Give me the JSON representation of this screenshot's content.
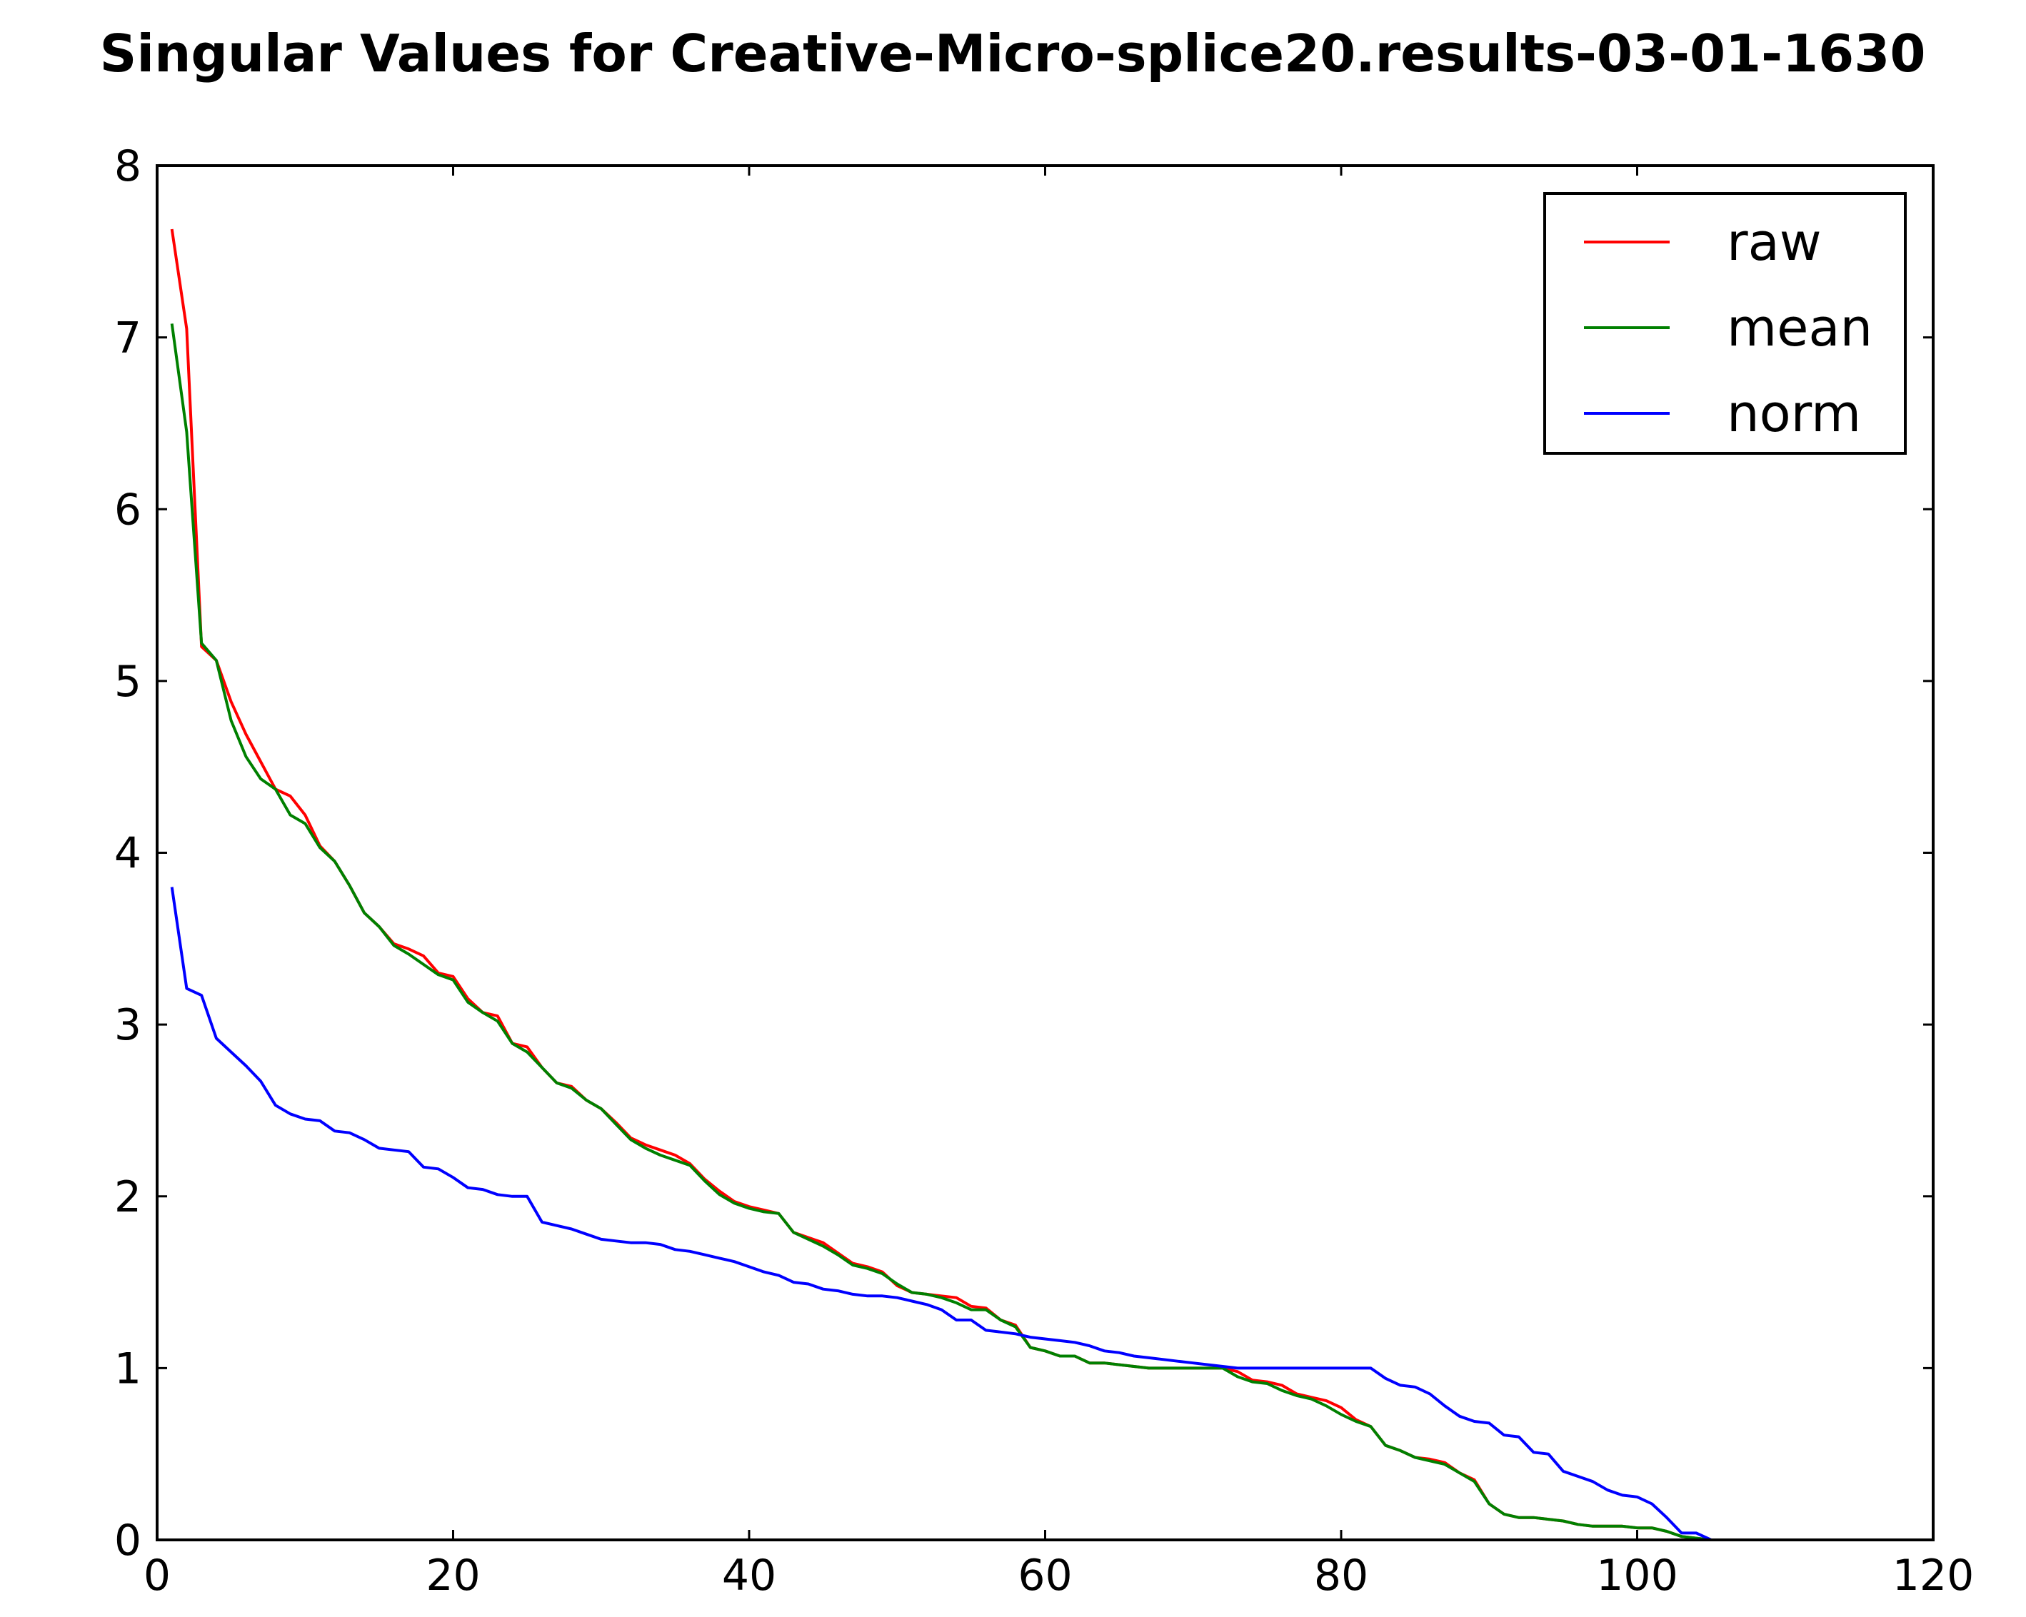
{
  "chart_data": {
    "type": "line",
    "title": "Singular Values for Creative-Micro-splice20.results-03-01-1630",
    "xlabel": "",
    "ylabel": "",
    "xlim": [
      0,
      120
    ],
    "ylim": [
      0,
      8
    ],
    "xticks": [
      "0",
      "20",
      "40",
      "60",
      "80",
      "100",
      "120"
    ],
    "yticks": [
      "0",
      "1",
      "2",
      "3",
      "4",
      "5",
      "6",
      "7",
      "8"
    ],
    "grid": false,
    "legend_position": "top-right",
    "series": [
      {
        "name": "raw",
        "color": "#ff0000",
        "x": [
          1,
          2,
          3,
          4,
          5,
          6,
          7,
          8,
          9,
          10,
          11,
          12,
          13,
          14,
          15,
          16,
          17,
          18,
          19,
          20,
          21,
          22,
          23,
          24,
          25,
          26,
          27,
          28,
          29,
          30,
          31,
          32,
          33,
          34,
          35,
          36,
          37,
          38,
          39,
          40,
          41,
          42,
          43,
          44,
          45,
          46,
          47,
          48,
          49,
          50,
          51,
          52,
          53,
          54,
          55,
          56,
          57,
          58,
          59,
          60,
          61,
          62,
          63,
          64,
          65,
          66,
          67,
          68,
          69,
          70,
          71,
          72,
          73,
          74,
          75,
          76,
          77,
          78,
          79,
          80,
          81,
          82,
          83,
          84,
          85,
          86,
          87,
          88,
          89,
          90,
          91,
          92,
          93,
          94,
          95,
          96,
          97,
          98,
          99,
          100,
          101,
          102,
          103,
          104,
          105
        ],
        "y": [
          7.63,
          7.05,
          5.2,
          5.12,
          4.88,
          4.69,
          4.53,
          4.37,
          4.33,
          4.22,
          4.04,
          3.95,
          3.81,
          3.65,
          3.57,
          3.47,
          3.44,
          3.4,
          3.3,
          3.28,
          3.15,
          3.07,
          3.05,
          2.89,
          2.87,
          2.75,
          2.66,
          2.64,
          2.56,
          2.51,
          2.43,
          2.34,
          2.3,
          2.27,
          2.24,
          2.19,
          2.1,
          2.03,
          1.97,
          1.94,
          1.92,
          1.9,
          1.79,
          1.76,
          1.73,
          1.67,
          1.61,
          1.59,
          1.56,
          1.48,
          1.44,
          1.43,
          1.42,
          1.41,
          1.36,
          1.35,
          1.28,
          1.25,
          1.12,
          1.1,
          1.07,
          1.07,
          1.03,
          1.03,
          1.02,
          1.01,
          1.0,
          1.0,
          1.0,
          1.0,
          1.0,
          1.0,
          0.98,
          0.93,
          0.92,
          0.9,
          0.85,
          0.83,
          0.81,
          0.77,
          0.7,
          0.66,
          0.55,
          0.52,
          0.48,
          0.47,
          0.45,
          0.39,
          0.35,
          0.21,
          0.15,
          0.13,
          0.13,
          0.12,
          0.11,
          0.09,
          0.08,
          0.08,
          0.08,
          0.07,
          0.07,
          0.05,
          0.02,
          0.01,
          0.0
        ]
      },
      {
        "name": "mean",
        "color": "#008000",
        "x": [
          1,
          2,
          3,
          4,
          5,
          6,
          7,
          8,
          9,
          10,
          11,
          12,
          13,
          14,
          15,
          16,
          17,
          18,
          19,
          20,
          21,
          22,
          23,
          24,
          25,
          26,
          27,
          28,
          29,
          30,
          31,
          32,
          33,
          34,
          35,
          36,
          37,
          38,
          39,
          40,
          41,
          42,
          43,
          44,
          45,
          46,
          47,
          48,
          49,
          50,
          51,
          52,
          53,
          54,
          55,
          56,
          57,
          58,
          59,
          60,
          61,
          62,
          63,
          64,
          65,
          66,
          67,
          68,
          69,
          70,
          71,
          72,
          73,
          74,
          75,
          76,
          77,
          78,
          79,
          80,
          81,
          82,
          83,
          84,
          85,
          86,
          87,
          88,
          89,
          90,
          91,
          92,
          93,
          94,
          95,
          96,
          97,
          98,
          99,
          100,
          101,
          102,
          103,
          104,
          105
        ],
        "y": [
          7.08,
          6.45,
          5.22,
          5.12,
          4.77,
          4.56,
          4.43,
          4.37,
          4.22,
          4.17,
          4.03,
          3.95,
          3.81,
          3.65,
          3.57,
          3.46,
          3.41,
          3.35,
          3.29,
          3.26,
          3.13,
          3.07,
          3.02,
          2.89,
          2.84,
          2.75,
          2.66,
          2.63,
          2.56,
          2.51,
          2.42,
          2.33,
          2.28,
          2.24,
          2.21,
          2.18,
          2.09,
          2.01,
          1.96,
          1.93,
          1.91,
          1.9,
          1.79,
          1.75,
          1.71,
          1.66,
          1.6,
          1.58,
          1.55,
          1.49,
          1.44,
          1.43,
          1.41,
          1.38,
          1.34,
          1.34,
          1.28,
          1.24,
          1.12,
          1.1,
          1.07,
          1.07,
          1.03,
          1.03,
          1.02,
          1.01,
          1.0,
          1.0,
          1.0,
          1.0,
          1.0,
          1.0,
          0.95,
          0.92,
          0.91,
          0.87,
          0.84,
          0.82,
          0.78,
          0.73,
          0.69,
          0.66,
          0.55,
          0.52,
          0.48,
          0.46,
          0.44,
          0.39,
          0.34,
          0.21,
          0.15,
          0.13,
          0.13,
          0.12,
          0.11,
          0.09,
          0.08,
          0.08,
          0.08,
          0.07,
          0.07,
          0.05,
          0.02,
          0.01,
          0.0
        ]
      },
      {
        "name": "norm",
        "color": "#0000ff",
        "x": [
          1,
          2,
          3,
          4,
          5,
          6,
          7,
          8,
          9,
          10,
          11,
          12,
          13,
          14,
          15,
          16,
          17,
          18,
          19,
          20,
          21,
          22,
          23,
          24,
          25,
          26,
          27,
          28,
          29,
          30,
          31,
          32,
          33,
          34,
          35,
          36,
          37,
          38,
          39,
          40,
          41,
          42,
          43,
          44,
          45,
          46,
          47,
          48,
          49,
          50,
          51,
          52,
          53,
          54,
          55,
          56,
          57,
          58,
          59,
          60,
          61,
          62,
          63,
          64,
          65,
          66,
          67,
          68,
          69,
          70,
          71,
          72,
          73,
          74,
          75,
          76,
          77,
          78,
          79,
          80,
          81,
          82,
          83,
          84,
          85,
          86,
          87,
          88,
          89,
          90,
          91,
          92,
          93,
          94,
          95,
          96,
          97,
          98,
          99,
          100,
          101,
          102,
          103,
          104,
          105
        ],
        "y": [
          3.8,
          3.21,
          3.17,
          2.92,
          2.84,
          2.76,
          2.67,
          2.53,
          2.48,
          2.45,
          2.44,
          2.38,
          2.37,
          2.33,
          2.28,
          2.27,
          2.26,
          2.17,
          2.16,
          2.11,
          2.05,
          2.04,
          2.01,
          2.0,
          2.0,
          1.85,
          1.83,
          1.81,
          1.78,
          1.75,
          1.74,
          1.73,
          1.73,
          1.72,
          1.69,
          1.68,
          1.66,
          1.64,
          1.62,
          1.59,
          1.56,
          1.54,
          1.5,
          1.49,
          1.46,
          1.45,
          1.43,
          1.42,
          1.42,
          1.41,
          1.39,
          1.37,
          1.34,
          1.28,
          1.28,
          1.22,
          1.21,
          1.2,
          1.18,
          1.17,
          1.16,
          1.15,
          1.13,
          1.1,
          1.09,
          1.07,
          1.06,
          1.05,
          1.04,
          1.03,
          1.02,
          1.01,
          1.0,
          1.0,
          1.0,
          1.0,
          1.0,
          1.0,
          1.0,
          1.0,
          1.0,
          1.0,
          0.94,
          0.9,
          0.89,
          0.85,
          0.78,
          0.72,
          0.69,
          0.68,
          0.61,
          0.6,
          0.51,
          0.5,
          0.4,
          0.37,
          0.34,
          0.29,
          0.26,
          0.25,
          0.21,
          0.13,
          0.04,
          0.04,
          0.0
        ]
      }
    ]
  }
}
